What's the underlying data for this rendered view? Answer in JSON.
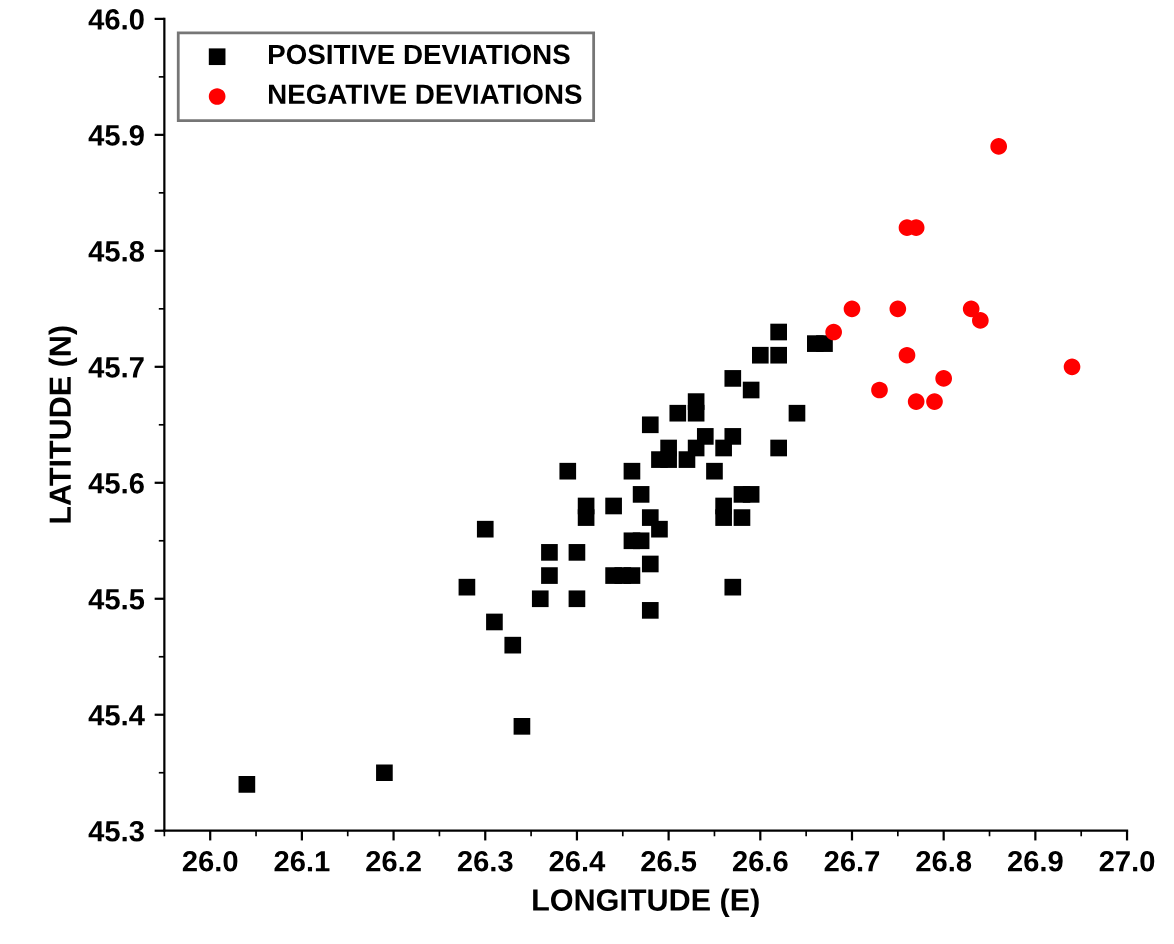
{
  "chart_data": {
    "type": "scatter",
    "xlabel": "LONGITUDE (E)",
    "ylabel": "LATITUDE (N)",
    "xlim": [
      25.95,
      27.0
    ],
    "xticks": [
      {
        "value": 26,
        "label": "26.0"
      },
      26.1,
      26.2,
      26.3,
      26.4,
      26.5,
      26.6,
      26.7,
      26.8,
      26.9,
      {
        "value": 27,
        "label": "27.0"
      }
    ],
    "ylim": [
      45.3,
      46.0
    ],
    "yticks": [
      45.3,
      45.4,
      45.5,
      45.6,
      45.7,
      45.8,
      45.9,
      {
        "value": 46,
        "label": "46.0"
      }
    ],
    "legend": "top left",
    "grid": false,
    "series": [
      {
        "name": "POSITIVE DEVIATIONS",
        "color": "#000000",
        "marker": "square",
        "x": [
          26.62,
          26.6,
          26.62,
          26.66,
          26.67,
          26.57,
          26.59,
          26.53,
          26.51,
          26.53,
          26.48,
          26.64,
          26.54,
          26.57,
          26.5,
          26.53,
          26.56,
          26.62,
          26.49,
          26.5,
          26.52,
          26.55,
          26.39,
          26.46,
          26.47,
          26.58,
          26.59,
          26.44,
          26.41,
          26.41,
          26.56,
          26.56,
          26.58,
          26.48,
          26.49,
          26.3,
          26.46,
          26.47,
          26.37,
          26.4,
          26.37,
          26.44,
          26.45,
          26.46,
          26.48,
          26.57,
          26.28,
          26.36,
          26.4,
          26.48,
          26.31,
          26.33,
          26.34,
          26.19,
          26.04
        ],
        "values": [
          45.73,
          45.71,
          45.71,
          45.72,
          45.72,
          45.69,
          45.68,
          45.67,
          45.66,
          45.66,
          45.65,
          45.66,
          45.64,
          45.64,
          45.63,
          45.63,
          45.63,
          45.63,
          45.62,
          45.62,
          45.62,
          45.61,
          45.61,
          45.61,
          45.59,
          45.59,
          45.59,
          45.58,
          45.58,
          45.57,
          45.58,
          45.57,
          45.57,
          45.57,
          45.56,
          45.56,
          45.55,
          45.55,
          45.54,
          45.54,
          45.52,
          45.52,
          45.52,
          45.52,
          45.53,
          45.51,
          45.51,
          45.5,
          45.5,
          45.49,
          45.48,
          45.46,
          45.39,
          45.35,
          45.34
        ]
      },
      {
        "name": "NEGATIVE DEVIATIONS",
        "color": "#ff0000",
        "marker": "circle",
        "x": [
          26.7,
          26.75,
          26.83,
          26.84,
          26.68,
          26.76,
          26.8,
          26.73,
          26.77,
          26.79,
          26.94,
          26.86,
          26.76,
          26.77
        ],
        "values": [
          45.75,
          45.75,
          45.75,
          45.74,
          45.73,
          45.71,
          45.69,
          45.68,
          45.67,
          45.67,
          45.7,
          45.89,
          45.82,
          45.82
        ]
      }
    ]
  }
}
